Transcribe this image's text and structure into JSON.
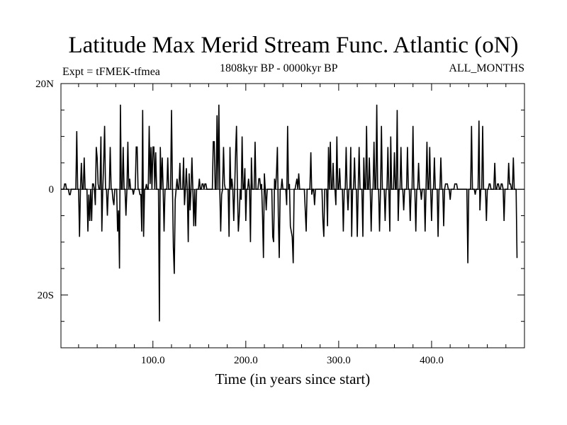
{
  "chart_data": {
    "type": "line",
    "title": "Latitude Max Merid Stream Func. Atlantic (oN)",
    "subtitle_left": "Expt = tFMEK-tfmea",
    "subtitle_center": "1808kyr BP - 0000kyr BP",
    "subtitle_right": "ALL_MONTHS",
    "xlabel": "Time (in years since start)",
    "ylabel": "",
    "xlim": [
      1,
      500
    ],
    "ylim": [
      -30,
      20
    ],
    "x_ticks": [
      100,
      200,
      300,
      400
    ],
    "x_tick_labels": [
      "100.0",
      "200.0",
      "300.0",
      "400.0"
    ],
    "y_ticks": [
      20,
      0,
      -20
    ],
    "y_tick_labels": [
      "20N",
      "0",
      "20S"
    ],
    "grid": false,
    "series": [
      {
        "color": "#000000",
        "x_start": 1,
        "x_step": 1,
        "values": [
          0,
          0,
          0,
          0,
          1,
          1,
          0,
          0,
          0,
          -1,
          -1,
          0,
          0,
          0,
          0,
          0,
          0,
          11,
          0,
          0,
          -9,
          0,
          5,
          0,
          0,
          6,
          0,
          0,
          0,
          -8,
          -1,
          -6,
          0,
          -6,
          1,
          1,
          0,
          -3,
          8,
          6,
          1,
          0,
          0,
          10,
          -8,
          0,
          5,
          12,
          0,
          0,
          -5,
          0,
          0,
          8,
          0,
          0,
          -2,
          -3,
          0,
          0,
          0,
          -8,
          -4,
          -15,
          16,
          0,
          0,
          8,
          0,
          0,
          -5,
          0,
          9,
          0,
          2,
          0,
          0,
          0,
          -1,
          0,
          0,
          8,
          8,
          0,
          0,
          -1,
          -1,
          -8,
          15,
          -9,
          0,
          0,
          1,
          0,
          0,
          12,
          1,
          8,
          0,
          8,
          8,
          0,
          7,
          0,
          0,
          0,
          -25,
          8,
          0,
          6,
          0,
          -8,
          0,
          0,
          0,
          6,
          0,
          0,
          0,
          15,
          1,
          -11,
          -16,
          -2,
          0,
          2,
          0,
          0,
          5,
          0,
          0,
          0,
          6,
          -3,
          0,
          4,
          0,
          -10,
          3,
          -4,
          0,
          6,
          0,
          -7,
          0,
          -7,
          0,
          0,
          0,
          2,
          0,
          0,
          1,
          1,
          0,
          1,
          1,
          0,
          0,
          0,
          0,
          0,
          0,
          0,
          9,
          9,
          0,
          0,
          14,
          0,
          16,
          0,
          -8,
          -1,
          0,
          8,
          1,
          0,
          0,
          0,
          0,
          -9,
          8,
          0,
          2,
          0,
          -6,
          0,
          7,
          12,
          0,
          -8,
          -5,
          0,
          -2,
          10,
          0,
          0,
          4,
          -6,
          0,
          0,
          2,
          0,
          -10,
          6,
          0,
          0,
          0,
          9,
          0,
          0,
          0,
          2,
          2,
          0,
          1,
          -5,
          -13,
          3,
          0,
          -4,
          0,
          0,
          0,
          0,
          0,
          0,
          -9,
          -10,
          2,
          0,
          3,
          8,
          -5,
          -13,
          0,
          0,
          2,
          0,
          0,
          0,
          0,
          -3,
          12,
          0,
          1,
          -7,
          -8,
          -9,
          -14,
          0,
          0,
          1,
          2,
          0,
          3,
          0,
          0,
          0,
          0,
          0,
          0,
          -4,
          -8,
          0,
          0,
          0,
          0,
          7,
          -1,
          0,
          0,
          -3,
          0,
          0,
          0,
          0,
          0,
          0,
          0,
          0,
          -6,
          -9,
          0,
          0,
          0,
          -7,
          8,
          0,
          9,
          0,
          0,
          5,
          0,
          0,
          -3,
          10,
          0,
          0,
          4,
          0,
          0,
          0,
          -8,
          0,
          0,
          8,
          0,
          -4,
          0,
          0,
          8,
          -9,
          0,
          0,
          6,
          0,
          0,
          -9,
          0,
          8,
          0,
          0,
          0,
          -9,
          6,
          0,
          0,
          12,
          0,
          0,
          6,
          0,
          -8,
          0,
          0,
          9,
          0,
          0,
          16,
          0,
          0,
          -8,
          0,
          12,
          0,
          0,
          0,
          -6,
          0,
          0,
          8,
          0,
          -8,
          10,
          0,
          0,
          0,
          7,
          0,
          0,
          15,
          -6,
          0,
          0,
          8,
          0,
          0,
          -4,
          0,
          0,
          0,
          8,
          0,
          0,
          -6,
          0,
          0,
          12,
          0,
          0,
          -8,
          0,
          0,
          5,
          0,
          0,
          -2,
          0,
          0,
          0,
          -8,
          0,
          9,
          0,
          0,
          8,
          0,
          -6,
          0,
          0,
          6,
          0,
          0,
          0,
          -9,
          0,
          0,
          6,
          0,
          0,
          -7,
          0,
          1,
          1,
          1,
          0,
          0,
          -2,
          0,
          0,
          0,
          0,
          1,
          1,
          1,
          0,
          0,
          0,
          0,
          0,
          0,
          0,
          0,
          0,
          0,
          0,
          -14,
          0,
          0,
          0,
          12,
          0,
          0,
          0,
          -1,
          0,
          0,
          0,
          13,
          -4,
          0,
          0,
          12,
          0,
          0,
          0,
          -6,
          0,
          0,
          1,
          1,
          0,
          0,
          0,
          0,
          5,
          0,
          0,
          1,
          1,
          0,
          0,
          1,
          1,
          0,
          -6,
          0,
          0,
          0,
          0,
          5,
          1,
          1,
          0,
          0,
          6,
          0,
          0,
          0,
          -13
        ]
      }
    ]
  }
}
